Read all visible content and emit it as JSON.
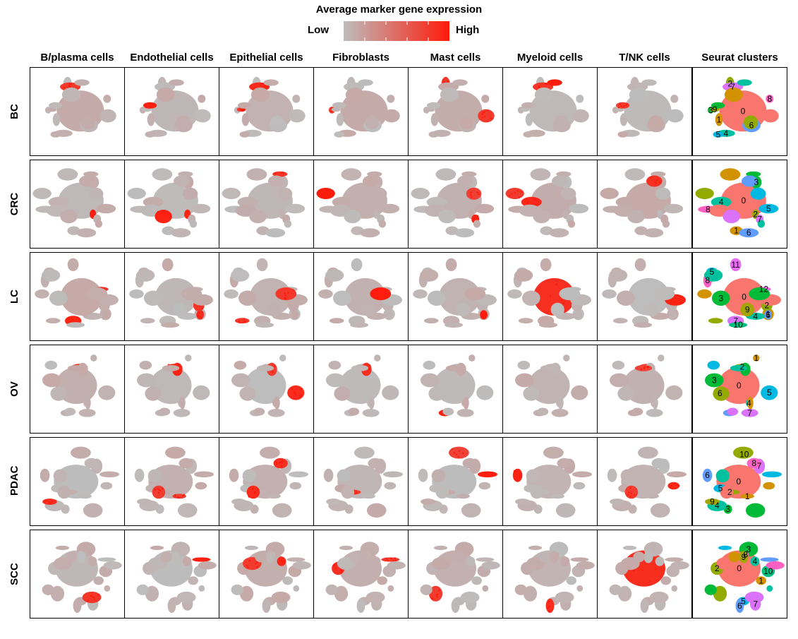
{
  "legend": {
    "title": "Average marker gene expression",
    "low_label": "Low",
    "high_label": "High",
    "low_color": "#bdbdbd",
    "high_color": "#ff1a0a"
  },
  "chart_data": {
    "type": "scatter",
    "description_type": "t-SNE feature plots grid",
    "columns": [
      "B/plasma cells",
      "Endothelial cells",
      "Epithelial cells",
      "Fibroblasts",
      "Mast cells",
      "Myeloid cells",
      "T/NK cells",
      "Seurat clusters"
    ],
    "rows": [
      "BC",
      "CRC",
      "LC",
      "OV",
      "PDAC",
      "SCC"
    ],
    "colorscale": {
      "low": "#bdbdbd",
      "high": "#ff1a0a"
    },
    "cluster_palette": [
      "#f8766d",
      "#d39200",
      "#93aa00",
      "#00ba38",
      "#00c19f",
      "#00b9e3",
      "#619cff",
      "#db72fb",
      "#ff61c3",
      "#a3a500",
      "#00bf7d",
      "#e76bf3",
      "#f564e3"
    ],
    "seurat_clusters": {
      "BC": [
        "0",
        "1",
        "2",
        "3",
        "4",
        "5",
        "6",
        "7",
        "8",
        "9"
      ],
      "CRC": [
        "0",
        "1",
        "2",
        "3",
        "4",
        "5",
        "6",
        "7",
        "8"
      ],
      "LC": [
        "0",
        "1",
        "2",
        "3",
        "4",
        "5",
        "6",
        "7",
        "8",
        "9",
        "10",
        "11",
        "12"
      ],
      "OV": [
        "0",
        "1",
        "2",
        "3",
        "4",
        "5",
        "6",
        "7"
      ],
      "PDAC": [
        "0",
        "1",
        "2",
        "3",
        "4",
        "5",
        "6",
        "7",
        "8",
        "9",
        "10"
      ],
      "SCC": [
        "0",
        "1",
        "2",
        "3",
        "4",
        "5",
        "6",
        "7",
        "8",
        "9",
        "10"
      ]
    }
  }
}
